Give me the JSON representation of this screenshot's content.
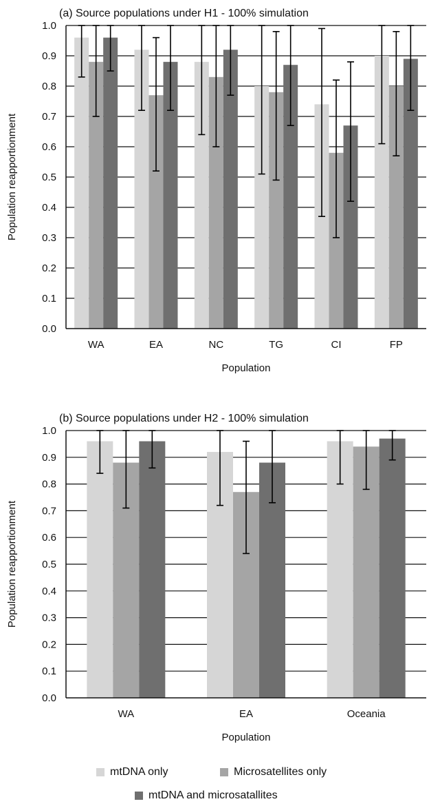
{
  "legend": {
    "items": [
      {
        "label": "mtDNA only",
        "color": "#d6d6d6"
      },
      {
        "label": "Microsatellites only",
        "color": "#a5a5a5"
      },
      {
        "label": "mtDNA and microsatallites",
        "color": "#6f6f6f"
      }
    ]
  },
  "chart_data": [
    {
      "type": "bar",
      "title": "(a) Source populations under H1 - 100% simulation",
      "xlabel": "Population",
      "ylabel": "Population reapportionment",
      "ylim": [
        0,
        1.0
      ],
      "yticks": [
        "0.0",
        "0.1",
        "0.2",
        "0.3",
        "0.4",
        "0.5",
        "0.6",
        "0.7",
        "0.8",
        "0.9",
        "1.0"
      ],
      "categories": [
        "WA",
        "EA",
        "NC",
        "TG",
        "CI",
        "FP"
      ],
      "grid": true,
      "series": [
        {
          "name": "mtDNA only",
          "color": "#d6d6d6",
          "values": [
            0.96,
            0.92,
            0.88,
            0.8,
            0.74,
            0.9
          ],
          "err_low": [
            0.83,
            0.72,
            0.64,
            0.51,
            0.37,
            0.61
          ],
          "err_high": [
            1.0,
            1.0,
            1.0,
            1.0,
            0.99,
            1.0
          ]
        },
        {
          "name": "Microsatellites only",
          "color": "#a5a5a5",
          "values": [
            0.88,
            0.77,
            0.83,
            0.78,
            0.58,
            0.8
          ],
          "err_low": [
            0.7,
            0.52,
            0.6,
            0.49,
            0.3,
            0.57
          ],
          "err_high": [
            1.0,
            0.96,
            1.0,
            0.98,
            0.82,
            0.98
          ]
        },
        {
          "name": "mtDNA and microsatallites",
          "color": "#6f6f6f",
          "values": [
            0.96,
            0.88,
            0.92,
            0.87,
            0.67,
            0.89
          ],
          "err_low": [
            0.85,
            0.72,
            0.77,
            0.67,
            0.42,
            0.72
          ],
          "err_high": [
            1.0,
            1.0,
            1.0,
            1.0,
            0.88,
            1.0
          ]
        }
      ]
    },
    {
      "type": "bar",
      "title": "(b) Source populations under H2 - 100% simulation",
      "xlabel": "Population",
      "ylabel": "Population reapportionment",
      "ylim": [
        0,
        1.0
      ],
      "yticks": [
        "0.0",
        "0.1",
        "0.2",
        "0.3",
        "0.4",
        "0.5",
        "0.6",
        "0.7",
        "0.8",
        "0.9",
        "1.0"
      ],
      "categories": [
        "WA",
        "EA",
        "Oceania"
      ],
      "grid": true,
      "series": [
        {
          "name": "mtDNA only",
          "color": "#d6d6d6",
          "values": [
            0.96,
            0.92,
            0.96
          ],
          "err_low": [
            0.84,
            0.72,
            0.8
          ],
          "err_high": [
            1.0,
            1.0,
            1.0
          ]
        },
        {
          "name": "Microsatellites only",
          "color": "#a5a5a5",
          "values": [
            0.88,
            0.77,
            0.94
          ],
          "err_low": [
            0.71,
            0.54,
            0.78
          ],
          "err_high": [
            1.0,
            0.96,
            1.0
          ]
        },
        {
          "name": "mtDNA and microsatallites",
          "color": "#6f6f6f",
          "values": [
            0.96,
            0.88,
            0.97
          ],
          "err_low": [
            0.86,
            0.73,
            0.89
          ],
          "err_high": [
            1.0,
            1.0,
            1.0
          ]
        }
      ]
    }
  ]
}
